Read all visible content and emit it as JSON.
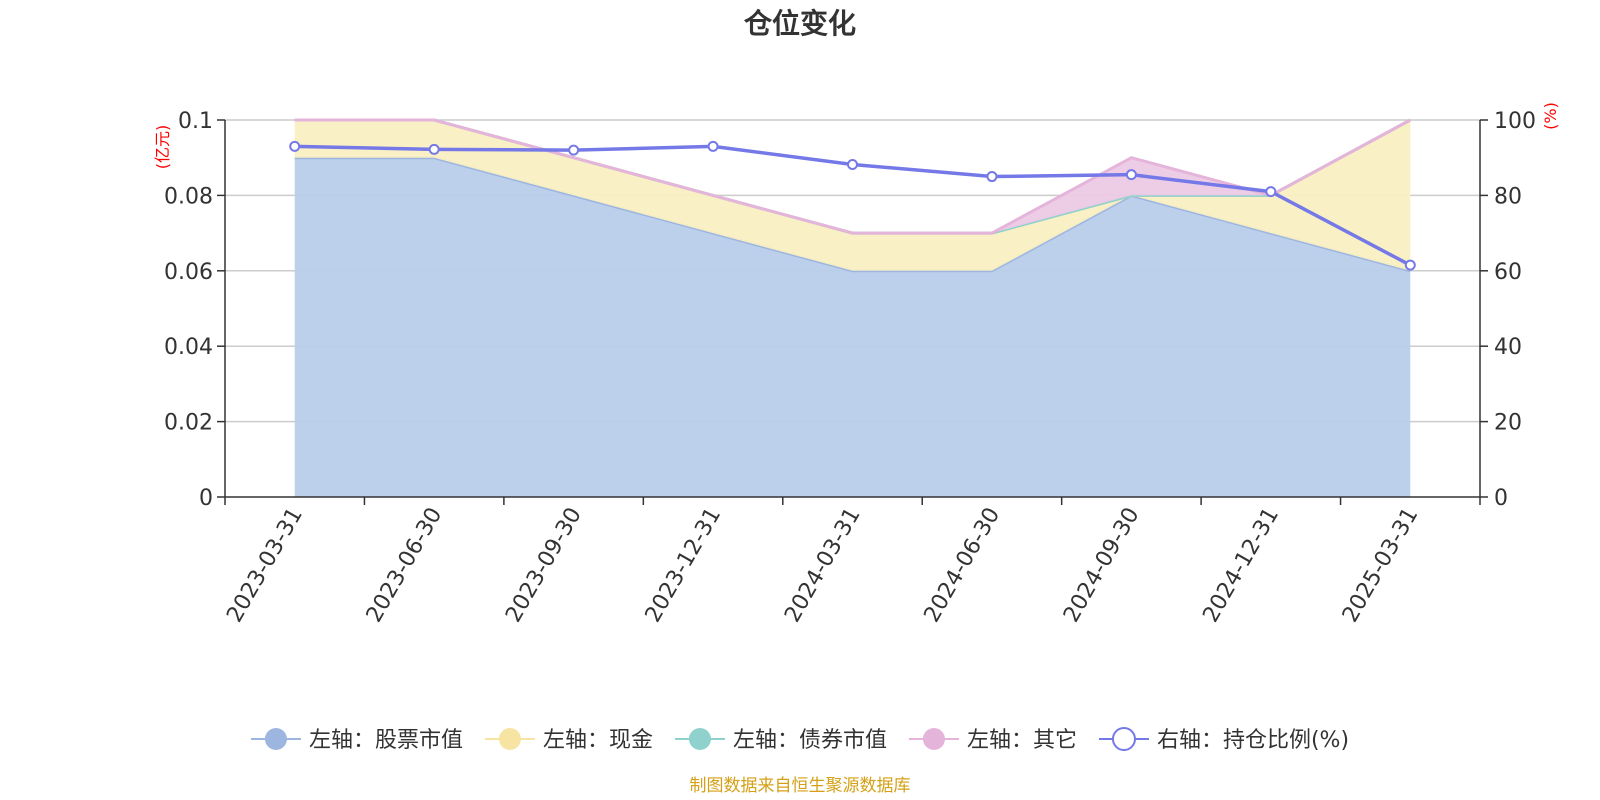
{
  "chart_data": {
    "type": "area",
    "title": "仓位变化",
    "source_note": "制图数据来自恒生聚源数据库",
    "categories": [
      "2023-03-31",
      "2023-06-30",
      "2023-09-30",
      "2023-12-31",
      "2024-03-31",
      "2024-06-30",
      "2024-09-30",
      "2024-12-31",
      "2025-03-31"
    ],
    "left_axis": {
      "unit": "(亿元)",
      "ylim": [
        0,
        0.1
      ],
      "ticks": [
        "0",
        "0.02",
        "0.04",
        "0.06",
        "0.08",
        "0.1"
      ]
    },
    "right_axis": {
      "unit": "(%)",
      "ylim": [
        0,
        100
      ],
      "ticks": [
        "0",
        "20",
        "40",
        "60",
        "80",
        "100"
      ]
    },
    "stacked": true,
    "grid": true,
    "legend_position": "bottom",
    "series": [
      {
        "name": "左轴：股票市值",
        "axis": "left",
        "kind": "area",
        "color": "#9db6e0",
        "fill": "#b8cdea",
        "values": [
          0.09,
          0.09,
          0.08,
          0.07,
          0.06,
          0.06,
          0.08,
          0.07,
          0.06
        ]
      },
      {
        "name": "左轴：现金",
        "axis": "left",
        "kind": "area",
        "color": "#f7e4a2",
        "fill": "#faefc2",
        "values": [
          0.01,
          0.01,
          0.01,
          0.01,
          0.01,
          0.01,
          0.0,
          0.01,
          0.04
        ]
      },
      {
        "name": "左轴：债券市值",
        "axis": "left",
        "kind": "area",
        "color": "#8fd1cc",
        "fill": "#b9e3df",
        "values": [
          0,
          0,
          0,
          0,
          0,
          0,
          0.0,
          0.0,
          0
        ]
      },
      {
        "name": "左轴：其它",
        "axis": "left",
        "kind": "area",
        "color": "#e5b4da",
        "fill": "#eccae5",
        "values": [
          0,
          0,
          0,
          0,
          0,
          0,
          0.01,
          0,
          0
        ]
      },
      {
        "name": "右轴：持仓比例(%)",
        "axis": "right",
        "kind": "line",
        "color": "#7579e7",
        "values": [
          93,
          92.2,
          92,
          93,
          88.2,
          85,
          85.5,
          81,
          61.5
        ]
      }
    ]
  }
}
